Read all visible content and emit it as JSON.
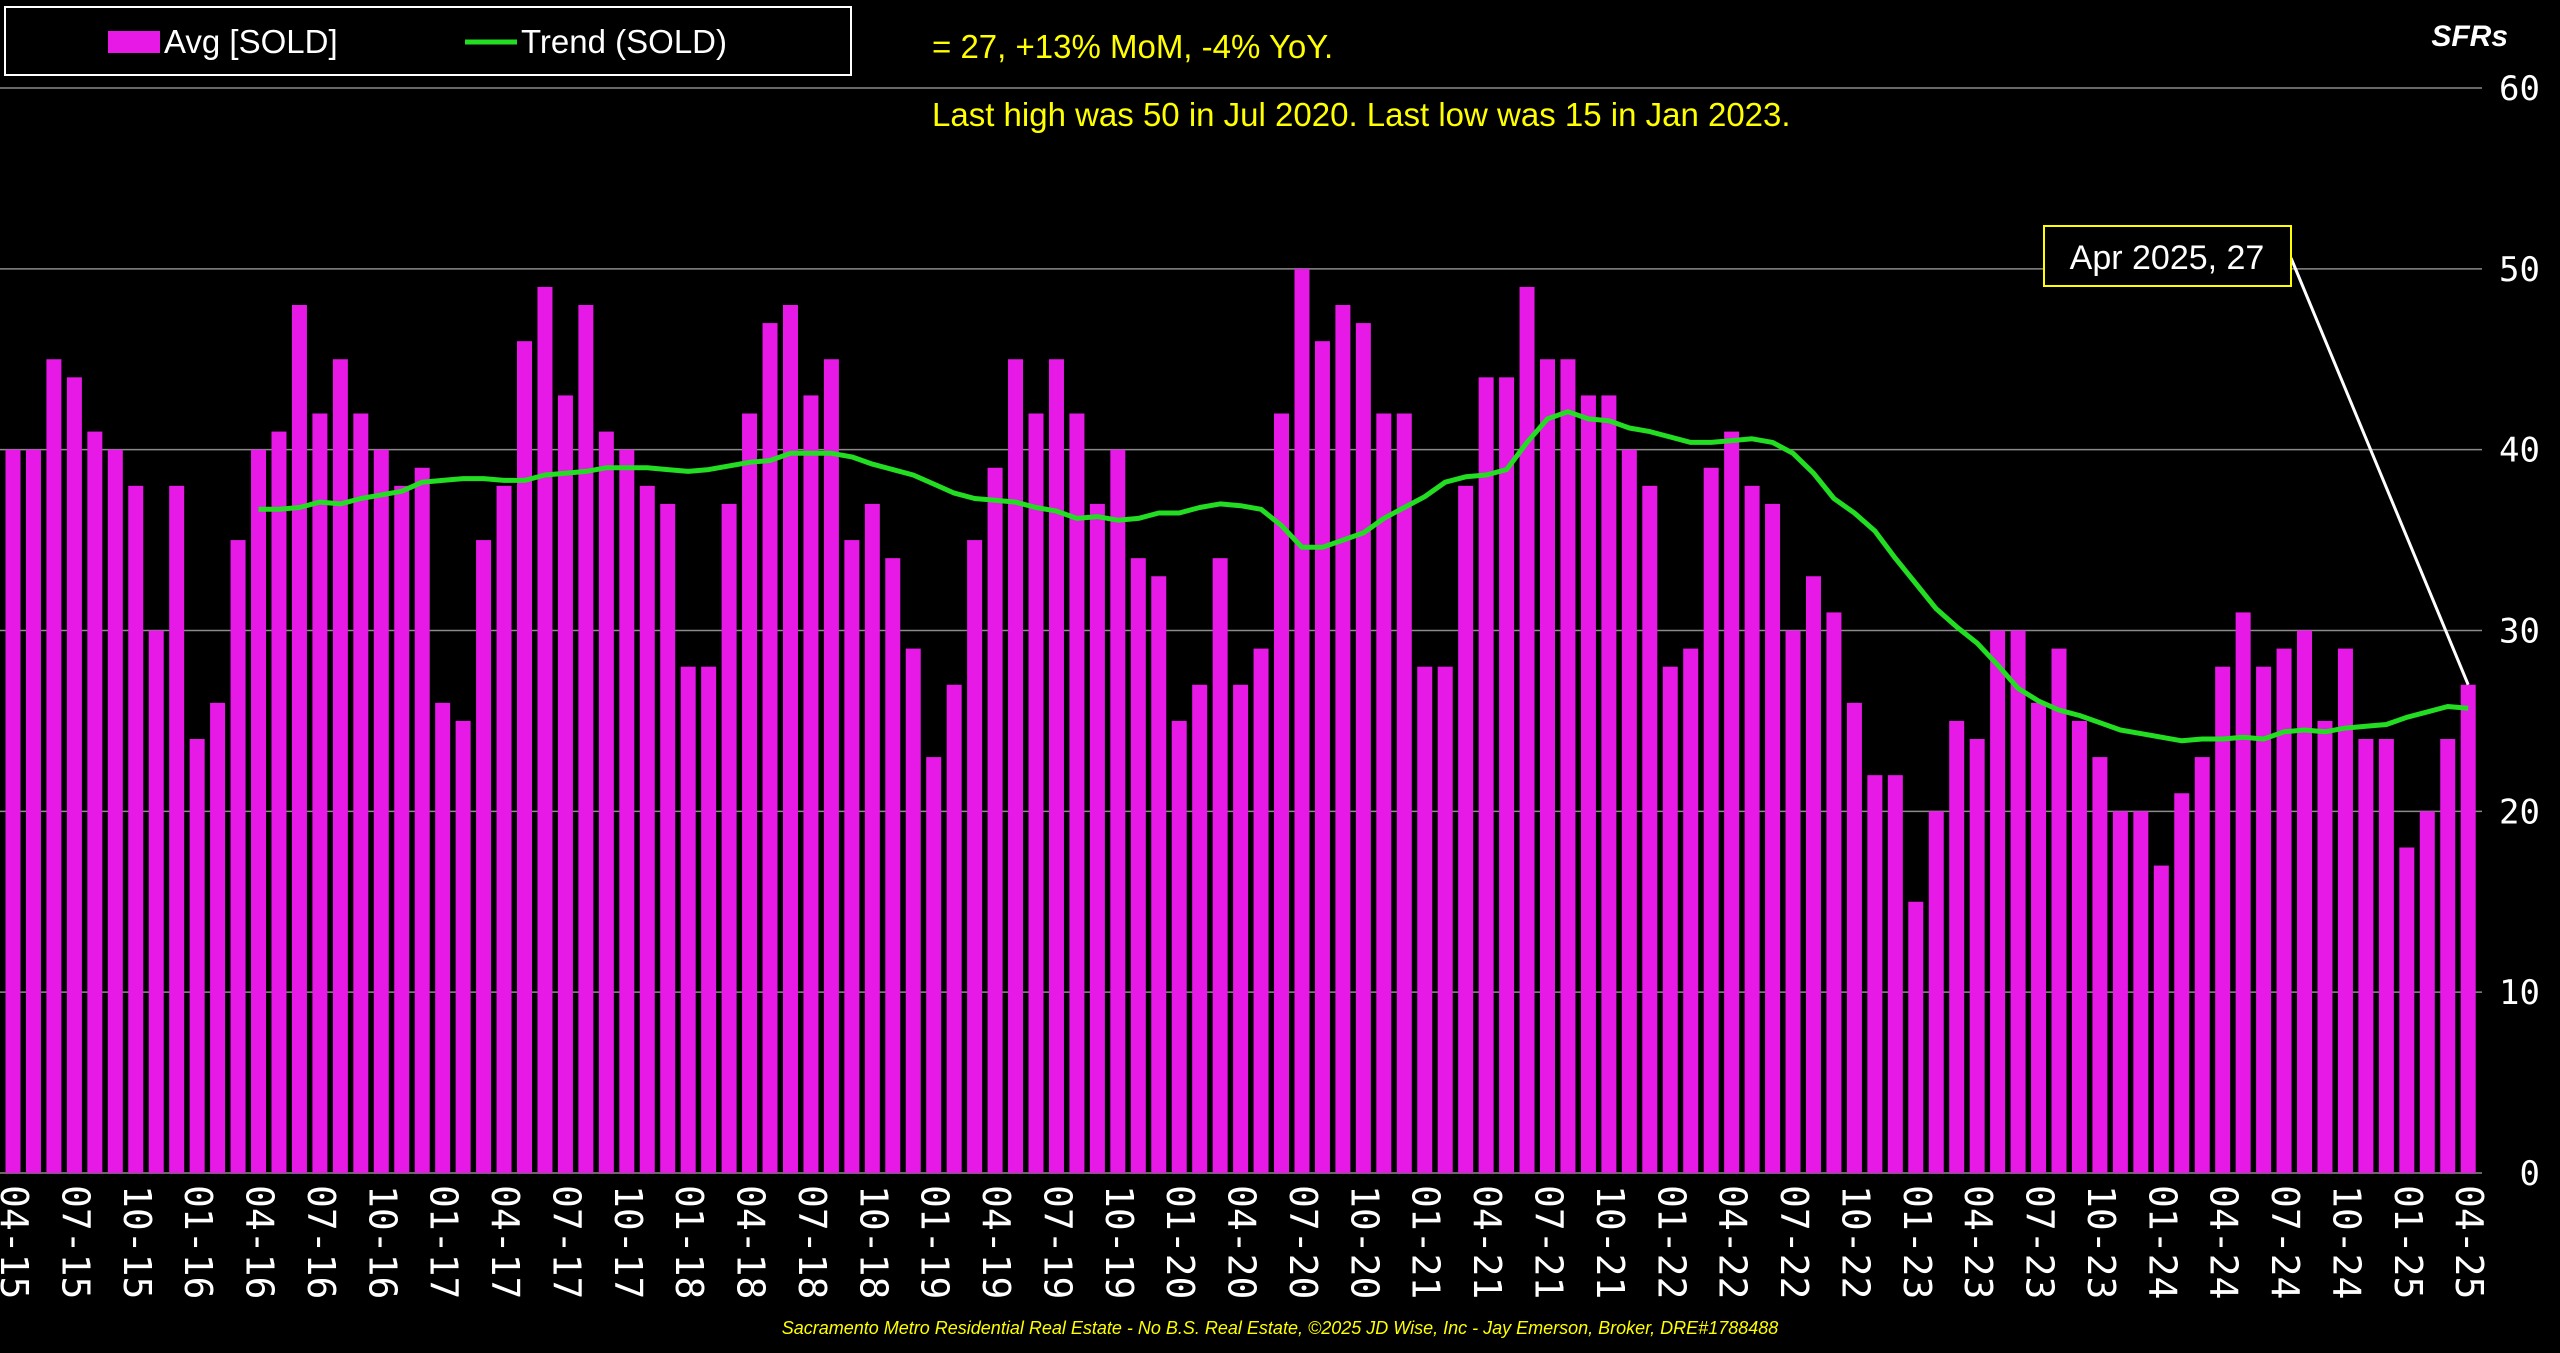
{
  "chart_data": {
    "type": "bar",
    "categories": [
      "04-15",
      null,
      null,
      "07-15",
      null,
      null,
      "10-15",
      null,
      null,
      "01-16",
      null,
      null,
      "04-16",
      null,
      null,
      "07-16",
      null,
      null,
      "10-16",
      null,
      null,
      "01-17",
      null,
      null,
      "04-17",
      null,
      null,
      "07-17",
      null,
      null,
      "10-17",
      null,
      null,
      "01-18",
      null,
      null,
      "04-18",
      null,
      null,
      "07-18",
      null,
      null,
      "10-18",
      null,
      null,
      "01-19",
      null,
      null,
      "04-19",
      null,
      null,
      "07-19",
      null,
      null,
      "10-19",
      null,
      null,
      "01-20",
      null,
      null,
      "04-20",
      null,
      null,
      "07-20",
      null,
      null,
      "10-20",
      null,
      null,
      "01-21",
      null,
      null,
      "04-21",
      null,
      null,
      "07-21",
      null,
      null,
      "10-21",
      null,
      null,
      "01-22",
      null,
      null,
      "04-22",
      null,
      null,
      "07-22",
      null,
      null,
      "10-22",
      null,
      null,
      "01-23",
      null,
      null,
      "04-23",
      null,
      null,
      "07-23",
      null,
      null,
      "10-23",
      null,
      null,
      "01-24",
      null,
      null,
      "04-24",
      null,
      null,
      "07-24",
      null,
      null,
      "10-24",
      null,
      null,
      "01-25",
      null,
      null,
      "04-25"
    ],
    "series": [
      {
        "name": "Avg [SOLD]",
        "type": "bar",
        "color": "#e619e6",
        "values": [
          40,
          40,
          45,
          44,
          41,
          40,
          38,
          30,
          38,
          24,
          26,
          35,
          40,
          41,
          48,
          42,
          45,
          42,
          40,
          38,
          39,
          26,
          25,
          35,
          38,
          46,
          49,
          43,
          48,
          41,
          40,
          38,
          37,
          28,
          28,
          37,
          42,
          47,
          48,
          43,
          45,
          35,
          37,
          34,
          29,
          23,
          27,
          35,
          39,
          45,
          42,
          45,
          42,
          37,
          40,
          34,
          33,
          25,
          27,
          34,
          27,
          29,
          42,
          50,
          46,
          48,
          47,
          42,
          42,
          28,
          28,
          38,
          44,
          44,
          49,
          45,
          45,
          43,
          43,
          40,
          38,
          28,
          29,
          39,
          41,
          38,
          37,
          30,
          33,
          31,
          26,
          22,
          22,
          15,
          20,
          25,
          24,
          30,
          30,
          26,
          29,
          25,
          23,
          20,
          20,
          17,
          21,
          23,
          28,
          31,
          28,
          29,
          30,
          25,
          29,
          24,
          24,
          18,
          20,
          24,
          27
        ]
      },
      {
        "name": "Trend (SOLD)",
        "type": "line",
        "color": "#22dd22",
        "values": [
          null,
          null,
          null,
          null,
          null,
          null,
          null,
          null,
          null,
          null,
          null,
          null,
          36.7,
          36.7,
          36.8,
          37.1,
          37.0,
          37.3,
          37.5,
          37.7,
          38.2,
          38.3,
          38.4,
          38.4,
          38.3,
          38.3,
          38.6,
          38.7,
          38.8,
          39.0,
          39.0,
          39.0,
          38.9,
          38.8,
          38.9,
          39.1,
          39.3,
          39.4,
          39.8,
          39.8,
          39.8,
          39.6,
          39.2,
          38.9,
          38.6,
          38.1,
          37.6,
          37.3,
          37.2,
          37.1,
          36.8,
          36.6,
          36.2,
          36.3,
          36.1,
          36.2,
          36.5,
          36.5,
          36.8,
          37.0,
          36.9,
          36.7,
          35.8,
          34.6,
          34.6,
          35.0,
          35.4,
          36.2,
          36.8,
          37.4,
          38.2,
          38.5,
          38.6,
          38.9,
          40.4,
          41.7,
          42.1,
          41.7,
          41.6,
          41.2,
          41.0,
          40.7,
          40.4,
          40.4,
          40.5,
          40.6,
          40.4,
          39.8,
          38.7,
          37.3,
          36.5,
          35.5,
          34.0,
          32.6,
          31.2,
          30.2,
          29.3,
          28.1,
          26.8,
          26.1,
          25.6,
          25.3,
          24.9,
          24.5,
          24.3,
          24.1,
          23.9,
          24.0,
          24.0,
          24.1,
          24.0,
          24.4,
          24.5,
          24.4,
          24.6,
          24.7,
          24.8,
          25.2,
          25.5,
          25.8,
          25.7
        ]
      }
    ],
    "ylim": [
      0,
      60
    ],
    "yticks": [
      0,
      10,
      20,
      30,
      40,
      50,
      60
    ],
    "grid": true,
    "legend": "upper left",
    "y_axis_label": "SFRs",
    "subtitle_lines": [
      "= 27, +13% MoM, -4% YoY.",
      "Last high was 50 in Jul 2020. Last low was 15 in Jan 2023."
    ],
    "annotation": {
      "text": "Apr 2025,  27",
      "index": 120
    },
    "footer": "Sacramento Metro Residential Real Estate - No B.S. Real Estate, ©2025 JD Wise, Inc - Jay Emerson, Broker, DRE#1788488"
  }
}
